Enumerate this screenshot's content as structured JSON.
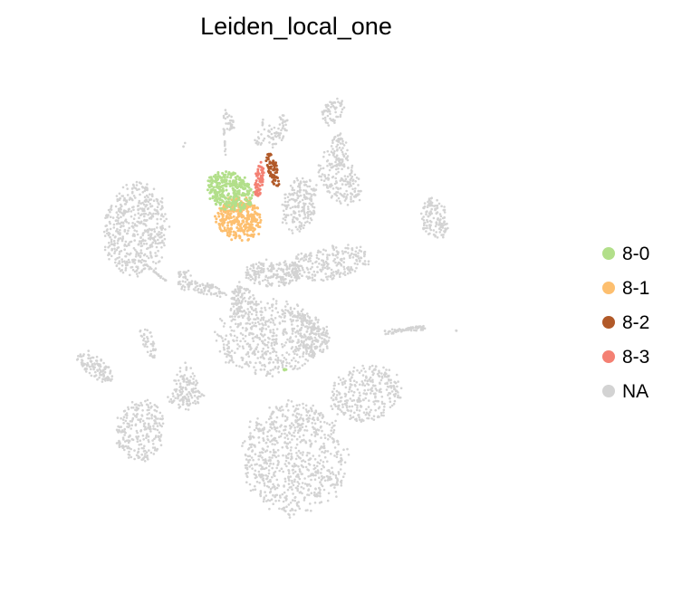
{
  "chart_data": {
    "type": "scatter",
    "title": "Leiden_local_one",
    "xlabel": "",
    "ylabel": "",
    "grid": false,
    "legend_placement": "right",
    "xlim": [
      0,
      100
    ],
    "ylim": [
      0,
      100
    ],
    "legend": [
      {
        "label": "8-0",
        "color": "#b2df8a"
      },
      {
        "label": "8-1",
        "color": "#fdbf6f"
      },
      {
        "label": "8-2",
        "color": "#b15928"
      },
      {
        "label": "8-3",
        "color": "#f48073"
      },
      {
        "label": "NA",
        "color": "#d3d3d3"
      }
    ],
    "background_clusters": [
      {
        "category": "NA",
        "shape": "ellipse",
        "cx": 19.2,
        "cy": 66.2,
        "rx": 6.6,
        "ry": 9.6,
        "rot": -5,
        "n": 500
      },
      {
        "category": "NA",
        "shape": "ellipse",
        "cx": 44.8,
        "cy": 45.5,
        "rx": 10.8,
        "ry": 7.8,
        "rot": 0,
        "n": 500
      },
      {
        "category": "NA",
        "shape": "ellipse",
        "cx": 49.6,
        "cy": 22.5,
        "rx": 10.6,
        "ry": 11.6,
        "rot": 5,
        "n": 750
      },
      {
        "category": "NA",
        "shape": "ellipse",
        "cx": 63.3,
        "cy": 34.8,
        "rx": 7.4,
        "ry": 5.6,
        "rot": 15,
        "n": 300
      },
      {
        "category": "NA",
        "shape": "ellipse",
        "cx": 19.9,
        "cy": 27.6,
        "rx": 5.0,
        "ry": 6.4,
        "rot": -10,
        "n": 240
      },
      {
        "category": "NA",
        "shape": "ellipse",
        "cx": 76.5,
        "cy": 68.5,
        "rx": 2.8,
        "ry": 4.4,
        "rot": 10,
        "n": 130
      },
      {
        "category": "NA",
        "shape": "ellipse",
        "cx": 45.5,
        "cy": 58.0,
        "rx": 6.0,
        "ry": 2.8,
        "rot": 0,
        "n": 190
      },
      {
        "category": "NA",
        "shape": "ellipse",
        "cx": 56.0,
        "cy": 59.8,
        "rx": 9.0,
        "ry": 3.4,
        "rot": 10,
        "n": 240
      },
      {
        "category": "NA",
        "shape": "ellipse",
        "cx": 53.4,
        "cy": 45.6,
        "rx": 3.2,
        "ry": 4.2,
        "rot": 0,
        "n": 140
      },
      {
        "category": "NA",
        "shape": "ellipse",
        "cx": 58.2,
        "cy": 76.1,
        "rx": 3.8,
        "ry": 6.0,
        "rot": 35,
        "n": 160
      },
      {
        "category": "NA",
        "shape": "ellipse",
        "cx": 11.3,
        "cy": 40.0,
        "rx": 4.6,
        "ry": 2.0,
        "rot": -40,
        "n": 110
      },
      {
        "category": "NA",
        "shape": "ellipse",
        "cx": 39.6,
        "cy": 52.5,
        "rx": 2.8,
        "ry": 3.2,
        "rot": 0,
        "n": 80
      },
      {
        "category": "NA",
        "shape": "ellipse",
        "cx": 50.5,
        "cy": 71.2,
        "rx": 3.6,
        "ry": 6.0,
        "rot": -15,
        "n": 190
      },
      {
        "category": "NA",
        "shape": "ellipse",
        "cx": 58.0,
        "cy": 81.0,
        "rx": 2.0,
        "ry": 4.0,
        "rot": 0,
        "n": 70
      },
      {
        "category": "NA",
        "shape": "ellipse",
        "cx": 28.5,
        "cy": 36.0,
        "rx": 2.5,
        "ry": 5.0,
        "rot": 0,
        "n": 80
      },
      {
        "category": "NA",
        "shape": "ellipse",
        "cx": 32.5,
        "cy": 55.0,
        "rx": 4.5,
        "ry": 1.2,
        "rot": -15,
        "n": 70
      },
      {
        "category": "NA",
        "shape": "ellipse",
        "cx": 57.0,
        "cy": 89.0,
        "rx": 2.0,
        "ry": 3.0,
        "rot": -30,
        "n": 60
      },
      {
        "category": "NA",
        "shape": "ellipse",
        "cx": 28.8,
        "cy": 34.2,
        "rx": 3.8,
        "ry": 2.0,
        "rot": 0,
        "n": 60
      },
      {
        "category": "NA",
        "shape": "ellipse",
        "cx": 28.5,
        "cy": 56.7,
        "rx": 1.6,
        "ry": 2.3,
        "rot": 0,
        "n": 40
      },
      {
        "category": "NA",
        "shape": "ellipse",
        "cx": 21.5,
        "cy": 44.8,
        "rx": 1.2,
        "ry": 3.6,
        "rot": 20,
        "n": 40
      },
      {
        "category": "NA",
        "shape": "ellipse",
        "cx": 37.0,
        "cy": 87.0,
        "rx": 1.0,
        "ry": 2.6,
        "rot": 15,
        "n": 30
      },
      {
        "category": "NA",
        "shape": "ellipse",
        "cx": 44.6,
        "cy": 84.0,
        "rx": 3.4,
        "ry": 2.4,
        "rot": 20,
        "n": 50
      },
      {
        "category": "NA",
        "shape": "ellipse",
        "cx": 47.5,
        "cy": 87.0,
        "rx": 0.9,
        "ry": 2.0,
        "rot": 20,
        "n": 20
      },
      {
        "category": "NA",
        "shape": "ellipse",
        "cx": 51.0,
        "cy": 49.5,
        "rx": 1.6,
        "ry": 1.0,
        "rot": 0,
        "n": 25
      },
      {
        "category": "NA",
        "shape": "ellipse",
        "cx": 39.0,
        "cy": 53.5,
        "rx": 1.2,
        "ry": 3.5,
        "rot": 0,
        "n": 30
      },
      {
        "category": "NA",
        "shape": "line",
        "x1": 67.0,
        "y1": 46.6,
        "x2": 74.5,
        "y2": 47.5,
        "w": 0.8,
        "n": 70
      },
      {
        "category": "NA",
        "shape": "line",
        "x1": 21.2,
        "y1": 59.5,
        "x2": 25.0,
        "y2": 56.4,
        "w": 0.3,
        "n": 25
      },
      {
        "category": "NA",
        "shape": "line",
        "x1": 36.0,
        "y1": 86.3,
        "x2": 36.4,
        "y2": 79.8,
        "w": 0.2,
        "n": 15
      },
      {
        "category": "NA",
        "shape": "line",
        "x1": 43.5,
        "y1": 87.5,
        "x2": 43.5,
        "y2": 86.3,
        "w": 0.2,
        "n": 5
      },
      {
        "category": "NA",
        "shape": "line",
        "x1": 80.6,
        "y1": 47.0,
        "x2": 81.2,
        "y2": 46.5,
        "w": 0.1,
        "n": 3
      },
      {
        "category": "NA",
        "shape": "line",
        "x1": 28.2,
        "y1": 82.2,
        "x2": 28.6,
        "y2": 83.0,
        "w": 0.1,
        "n": 3
      }
    ],
    "highlight_clusters": [
      {
        "category": "8-1",
        "shape": "ellipse",
        "cx": 39.0,
        "cy": 68.4,
        "rx": 4.8,
        "ry": 4.4,
        "rot": -20,
        "n": 320
      },
      {
        "category": "8-0",
        "shape": "ellipse",
        "cx": 37.2,
        "cy": 73.7,
        "rx": 5.0,
        "ry": 3.8,
        "rot": -25,
        "n": 300
      },
      {
        "category": "8-3",
        "shape": "ellipse",
        "cx": 42.8,
        "cy": 75.6,
        "rx": 0.9,
        "ry": 3.8,
        "rot": -5,
        "n": 70
      },
      {
        "category": "8-2",
        "shape": "ellipse",
        "cx": 45.4,
        "cy": 77.8,
        "rx": 1.1,
        "ry": 3.6,
        "rot": 15,
        "n": 70
      },
      {
        "category": "8-0",
        "shape": "ellipse",
        "cx": 47.8,
        "cy": 39.5,
        "rx": 0.3,
        "ry": 0.3,
        "rot": 0,
        "n": 5
      }
    ]
  }
}
